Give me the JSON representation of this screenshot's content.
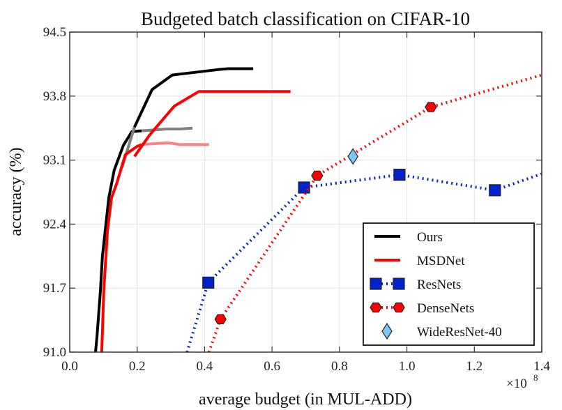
{
  "chart_data": {
    "type": "line",
    "title": "Budgeted batch classification on CIFAR-10",
    "xlabel": "average budget (in MUL-ADD)",
    "ylabel": "accuracy (%)",
    "x_multiplier_label": "×10^8",
    "x_multiplier_base": "×10",
    "x_multiplier_exp": "8",
    "xlim": [
      0.0,
      1.4
    ],
    "ylim": [
      91.0,
      94.5
    ],
    "xticks": [
      0.0,
      0.2,
      0.4,
      0.6,
      0.8,
      1.0,
      1.2,
      1.4
    ],
    "xtick_labels": [
      "0.0",
      "0.2",
      "0.4",
      "0.6",
      "0.8",
      "1.0",
      "1.2",
      "1.4"
    ],
    "yticks": [
      91.0,
      91.7,
      92.4,
      93.1,
      93.8,
      94.5
    ],
    "ytick_labels": [
      "91.0",
      "91.7",
      "92.4",
      "93.1",
      "93.8",
      "94.5"
    ],
    "grid": true,
    "legend_position": "bottom-right",
    "series": [
      {
        "name": "Ours",
        "color": "#000000",
        "style": "solid",
        "in_legend": true,
        "segments": [
          {
            "color": "#000000",
            "points": [
              [
                0.0765,
                91.0
              ],
              [
                0.081,
                91.18
              ],
              [
                0.091,
                91.67
              ],
              [
                0.097,
                92.05
              ],
              [
                0.116,
                92.69
              ],
              [
                0.132,
                92.99
              ],
              [
                0.159,
                93.26
              ],
              [
                0.184,
                93.41
              ],
              [
                0.213,
                93.42
              ]
            ]
          },
          {
            "color": "#808080",
            "points": [
              [
                0.213,
                93.42
              ],
              [
                0.29,
                93.44
              ],
              [
                0.327,
                93.44
              ],
              [
                0.364,
                93.45
              ]
            ]
          },
          {
            "color": "#808080",
            "points": [
              [
                0.155,
                93.02
              ],
              [
                0.192,
                93.46
              ]
            ]
          },
          {
            "color": "#000000",
            "points": [
              [
                0.192,
                93.46
              ],
              [
                0.244,
                93.87
              ],
              [
                0.304,
                94.03
              ],
              [
                0.372,
                94.06
              ],
              [
                0.44,
                94.09
              ],
              [
                0.471,
                94.1
              ],
              [
                0.544,
                94.1
              ]
            ]
          }
        ]
      },
      {
        "name": "MSDNet",
        "color": "#ff0000",
        "style": "solid",
        "in_legend": true,
        "segments": [
          {
            "color": "#ff0000",
            "points": [
              [
                0.095,
                91.0
              ],
              [
                0.101,
                91.67
              ],
              [
                0.112,
                92.33
              ],
              [
                0.124,
                92.69
              ],
              [
                0.139,
                92.84
              ],
              [
                0.165,
                93.16
              ],
              [
                0.2,
                93.25
              ],
              [
                0.213,
                93.27
              ]
            ]
          },
          {
            "color": "#ff8080",
            "points": [
              [
                0.213,
                93.27
              ],
              [
                0.29,
                93.29
              ],
              [
                0.327,
                93.27
              ],
              [
                0.413,
                93.27
              ]
            ]
          },
          {
            "color": "#ff0000",
            "points": [
              [
                0.192,
                93.14
              ],
              [
                0.238,
                93.38
              ],
              [
                0.31,
                93.69
              ],
              [
                0.383,
                93.85
              ],
              [
                0.655,
                93.85
              ]
            ]
          }
        ]
      },
      {
        "name": "ResNets",
        "color": "#0022cc",
        "style": "dotted",
        "marker": "square",
        "marker_fill": "#0022cc",
        "in_legend": true,
        "line_points": [
          [
            0.348,
            91.0
          ],
          [
            0.411,
            91.76
          ],
          [
            0.695,
            92.8
          ],
          [
            0.978,
            92.94
          ],
          [
            1.261,
            92.77
          ],
          [
            1.4,
            92.95
          ]
        ],
        "markers": [
          [
            0.411,
            91.76
          ],
          [
            0.695,
            92.8
          ],
          [
            0.978,
            92.94
          ],
          [
            1.261,
            92.77
          ]
        ]
      },
      {
        "name": "DenseNets",
        "color": "#ff0000",
        "style": "dotted",
        "marker": "hexagon",
        "marker_fill": "#ff0000",
        "in_legend": true,
        "line_points": [
          [
            0.413,
            91.0
          ],
          [
            0.447,
            91.36
          ],
          [
            0.734,
            92.93
          ],
          [
            1.071,
            93.68
          ],
          [
            1.4,
            94.03
          ]
        ],
        "markers": [
          [
            0.447,
            91.36
          ],
          [
            0.734,
            92.93
          ],
          [
            1.071,
            93.68
          ]
        ]
      },
      {
        "name": "WideResNet-40",
        "color": "#7ec8f8",
        "style": "none",
        "marker": "diamond",
        "marker_fill": "#7ec8f8",
        "in_legend": true,
        "markers": [
          [
            0.84,
            93.14
          ]
        ]
      }
    ]
  }
}
